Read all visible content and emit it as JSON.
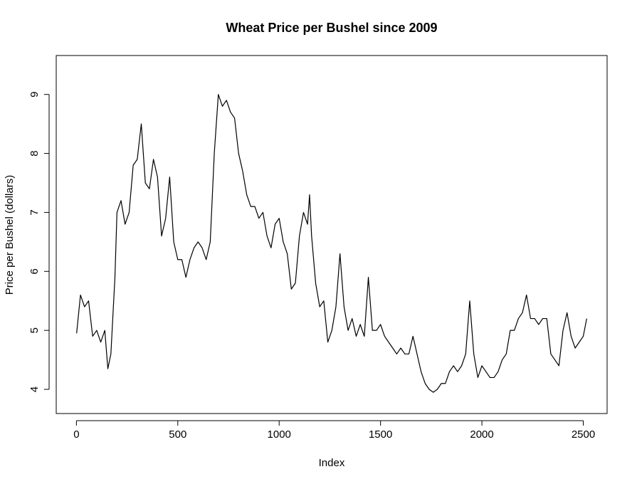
{
  "chart_data": {
    "type": "line",
    "title": "Wheat Price per Bushel since 2009",
    "x_label": "Index",
    "y_label": "Price per Bushel (dollars)",
    "x": [
      1,
      20,
      40,
      60,
      80,
      100,
      120,
      140,
      155,
      170,
      190,
      200,
      220,
      240,
      260,
      280,
      300,
      320,
      340,
      360,
      380,
      400,
      420,
      440,
      460,
      480,
      500,
      520,
      540,
      560,
      580,
      600,
      620,
      640,
      660,
      680,
      700,
      720,
      740,
      760,
      780,
      800,
      820,
      840,
      860,
      880,
      900,
      920,
      940,
      960,
      980,
      1000,
      1020,
      1040,
      1060,
      1080,
      1100,
      1120,
      1140,
      1150,
      1160,
      1180,
      1200,
      1220,
      1240,
      1260,
      1280,
      1300,
      1320,
      1340,
      1360,
      1380,
      1400,
      1420,
      1440,
      1460,
      1480,
      1500,
      1520,
      1540,
      1560,
      1580,
      1600,
      1620,
      1640,
      1660,
      1680,
      1700,
      1720,
      1740,
      1760,
      1780,
      1800,
      1820,
      1840,
      1860,
      1880,
      1900,
      1920,
      1940,
      1960,
      1980,
      2000,
      2020,
      2040,
      2060,
      2080,
      2100,
      2120,
      2140,
      2160,
      2180,
      2200,
      2220,
      2240,
      2260,
      2280,
      2300,
      2320,
      2340,
      2360,
      2380,
      2400,
      2420,
      2440,
      2460,
      2480,
      2500,
      2517
    ],
    "values": [
      4.95,
      5.6,
      5.4,
      5.5,
      4.9,
      5.0,
      4.8,
      5.0,
      4.35,
      4.6,
      5.9,
      7.0,
      7.2,
      6.8,
      7.0,
      7.8,
      7.9,
      8.5,
      7.5,
      7.4,
      7.9,
      7.6,
      6.6,
      6.9,
      7.6,
      6.5,
      6.2,
      6.2,
      5.9,
      6.2,
      6.4,
      6.5,
      6.4,
      6.2,
      6.5,
      8.0,
      9.0,
      8.8,
      8.9,
      8.7,
      8.6,
      8.0,
      7.7,
      7.3,
      7.1,
      7.1,
      6.9,
      7.0,
      6.6,
      6.4,
      6.8,
      6.9,
      6.5,
      6.3,
      5.7,
      5.8,
      6.6,
      7.0,
      6.8,
      7.3,
      6.6,
      5.8,
      5.4,
      5.5,
      4.8,
      5.0,
      5.4,
      6.3,
      5.4,
      5.0,
      5.2,
      4.9,
      5.1,
      4.9,
      5.9,
      5.0,
      5.0,
      5.1,
      4.9,
      4.8,
      4.7,
      4.6,
      4.7,
      4.6,
      4.6,
      4.9,
      4.6,
      4.3,
      4.1,
      4.0,
      3.95,
      4.0,
      4.1,
      4.1,
      4.3,
      4.4,
      4.3,
      4.4,
      4.6,
      5.5,
      4.6,
      4.2,
      4.4,
      4.3,
      4.2,
      4.2,
      4.3,
      4.5,
      4.6,
      5.0,
      5.0,
      5.2,
      5.3,
      5.6,
      5.2,
      5.2,
      5.1,
      5.2,
      5.2,
      4.6,
      4.5,
      4.4,
      5.0,
      5.3,
      4.9,
      4.7,
      4.8,
      4.9,
      5.2
    ],
    "color": "#000000",
    "xlim": [
      -99.6,
      2617.6
    ],
    "xticks": [
      0,
      500,
      1000,
      1500,
      2000,
      2500
    ],
    "ylim": [
      3.59,
      9.66
    ],
    "yticks": [
      4,
      5,
      6,
      7,
      8,
      9
    ]
  }
}
